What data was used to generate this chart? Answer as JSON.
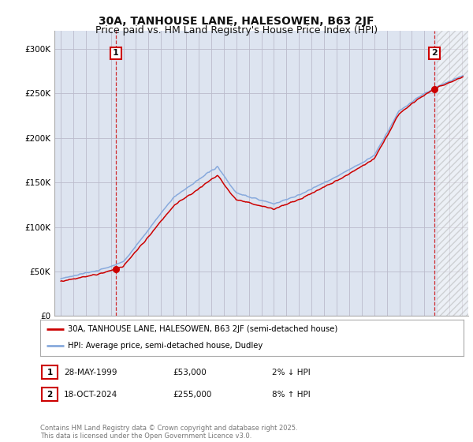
{
  "title": "30A, TANHOUSE LANE, HALESOWEN, B63 2JF",
  "subtitle": "Price paid vs. HM Land Registry's House Price Index (HPI)",
  "sale1_date": "28-MAY-1999",
  "sale1_year": 1999.4,
  "sale1_price": 53000,
  "sale2_date": "18-OCT-2024",
  "sale2_year": 2024.8,
  "sale2_price": 255000,
  "sale1_hpi_change": "2% ↓ HPI",
  "sale2_hpi_change": "8% ↑ HPI",
  "legend1": "30A, TANHOUSE LANE, HALESOWEN, B63 2JF (semi-detached house)",
  "legend2": "HPI: Average price, semi-detached house, Dudley",
  "footer": "Contains HM Land Registry data © Crown copyright and database right 2025.\nThis data is licensed under the Open Government Licence v3.0.",
  "line_color_red": "#cc0000",
  "line_color_blue": "#88aadd",
  "background_color": "#ffffff",
  "grid_color": "#bbbbcc",
  "plot_bg_color": "#dde4f0",
  "hatch_bg_color": "#ccccdd",
  "ylim_min": 0,
  "ylim_max": 320000,
  "xmin": 1994.5,
  "xmax": 2027.5,
  "hatch_start": 2025.0,
  "title_fontsize": 10,
  "subtitle_fontsize": 9
}
